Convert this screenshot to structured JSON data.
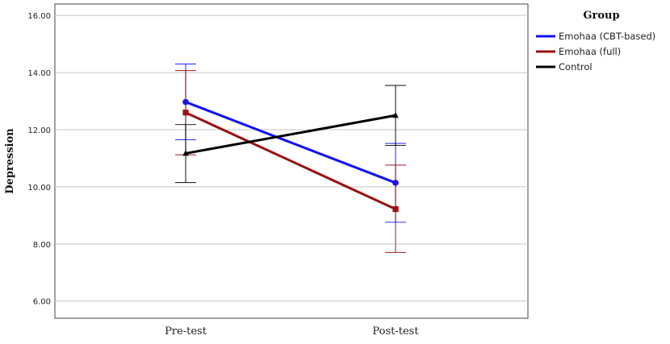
{
  "chart_data": {
    "type": "line",
    "ylabel": "Depression",
    "xlabel": "",
    "categories": [
      "Pre-test",
      "Post-test"
    ],
    "ylim": [
      5.4,
      16.4
    ],
    "yticks": [
      6,
      8,
      10,
      12,
      14,
      16
    ],
    "ytick_labels": [
      "6.00",
      "8.00",
      "10.00",
      "12.00",
      "14.00",
      "16.00"
    ],
    "grid": "horizontal",
    "legend": {
      "title": "Group",
      "placement": "top-right, outside plot"
    },
    "series": [
      {
        "name": "Emohaa (CBT-based)",
        "color": "#1010ff",
        "marker": "circle",
        "values": [
          12.97,
          10.14
        ],
        "error_low": [
          11.65,
          8.76
        ],
        "error_high": [
          14.3,
          11.52
        ]
      },
      {
        "name": "Emohaa (full)",
        "color": "#9b0f0f",
        "marker": "square",
        "values": [
          12.6,
          9.22
        ],
        "error_low": [
          11.12,
          7.7
        ],
        "error_high": [
          14.07,
          10.76
        ]
      },
      {
        "name": "Control",
        "color": "#000000",
        "marker": "triangle",
        "values": [
          11.17,
          12.5
        ],
        "error_low": [
          10.15,
          11.45
        ],
        "error_high": [
          12.18,
          13.55
        ]
      }
    ]
  }
}
